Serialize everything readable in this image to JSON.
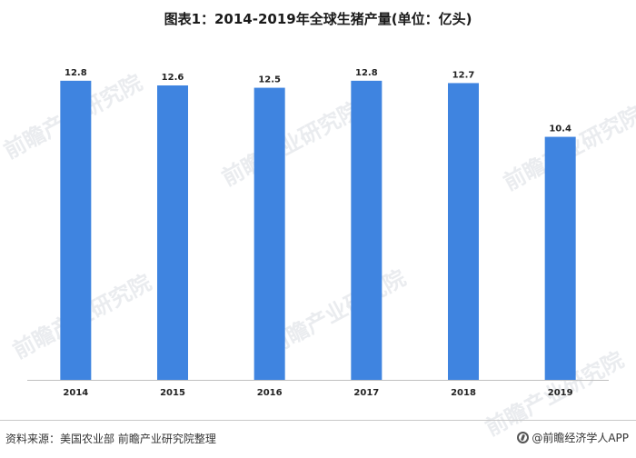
{
  "title": "图表1：2014-2019年全球生猪产量(单位：亿头)",
  "watermark": "前瞻产业研究院",
  "source": "资料来源：美国农业部 前瞻产业研究院整理",
  "brand": "@前瞻经济学人APP",
  "colors": {
    "bar": "#3f84e0",
    "axis": "#bfbfbf"
  },
  "chart_data": {
    "type": "bar",
    "categories": [
      "2014",
      "2015",
      "2016",
      "2017",
      "2018",
      "2019"
    ],
    "values": [
      12.8,
      12.6,
      12.5,
      12.8,
      12.7,
      10.4
    ],
    "data_labels": [
      "12.8",
      "12.6",
      "12.5",
      "12.8",
      "12.7",
      "10.4"
    ],
    "title": "图表1：2014-2019年全球生猪产量(单位：亿头)",
    "xlabel": "",
    "ylabel": "",
    "ylim": [
      0,
      14
    ],
    "grid": false,
    "y_axis_visible": false
  }
}
